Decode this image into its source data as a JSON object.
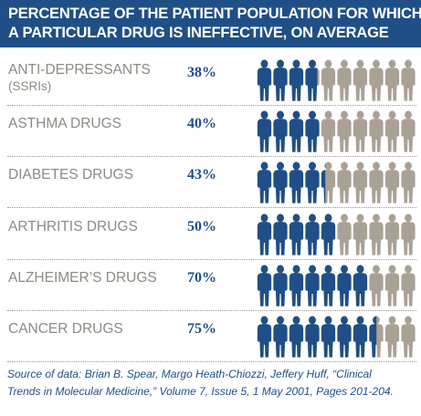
{
  "header": {
    "title_line1": "PERCENTAGE OF THE PATIENT POPULATION FOR WHICH",
    "title_line2": "A PARTICULAR DRUG IS INEFFECTIVE, ON AVERAGE"
  },
  "colors": {
    "header_bg": "#1f4f86",
    "ineffective": "#1f4f86",
    "effective": "#aaa196",
    "label": "#8e8a83"
  },
  "icon_name": "person-icon",
  "icons_per_row": 10,
  "chart_data": {
    "type": "bar",
    "title": "PERCENTAGE OF THE PATIENT POPULATION FOR WHICH A PARTICULAR DRUG IS INEFFECTIVE, ON AVERAGE",
    "categories": [
      "ANTI-DEPRESSANTS (SSRIs)",
      "ASTHMA DRUGS",
      "DIABETES DRUGS",
      "ARTHRITIS DRUGS",
      "ALZHEIMER'S DRUGS",
      "CANCER DRUGS"
    ],
    "values": [
      38,
      40,
      43,
      50,
      70,
      75
    ],
    "labels": [
      "38%",
      "40%",
      "43%",
      "50%",
      "70%",
      "75%"
    ],
    "rows": [
      {
        "line1": "ANTI-DEPRESSANTS",
        "line2": "(SSRIs)",
        "value": 38,
        "value_label": "38%"
      },
      {
        "line1": "ASTHMA DRUGS",
        "line2": "",
        "value": 40,
        "value_label": "40%"
      },
      {
        "line1": "DIABETES DRUGS",
        "line2": "",
        "value": 43,
        "value_label": "43%"
      },
      {
        "line1": "ARTHRITIS DRUGS",
        "line2": "",
        "value": 50,
        "value_label": "50%"
      },
      {
        "line1": "ALZHEIMER’S DRUGS",
        "line2": "",
        "value": 70,
        "value_label": "70%"
      },
      {
        "line1": "CANCER DRUGS",
        "line2": "",
        "value": 75,
        "value_label": "75%"
      }
    ],
    "ylim": [
      0,
      100
    ]
  },
  "source": {
    "line1": "Source of data: Brian B. Spear, Margo Heath-Chiozzi, Jeffery Huff, “Clinical",
    "line2": "Trends in Molecular Medicine,” Volume 7, Issue 5, 1 May 2001, Pages 201-204."
  }
}
